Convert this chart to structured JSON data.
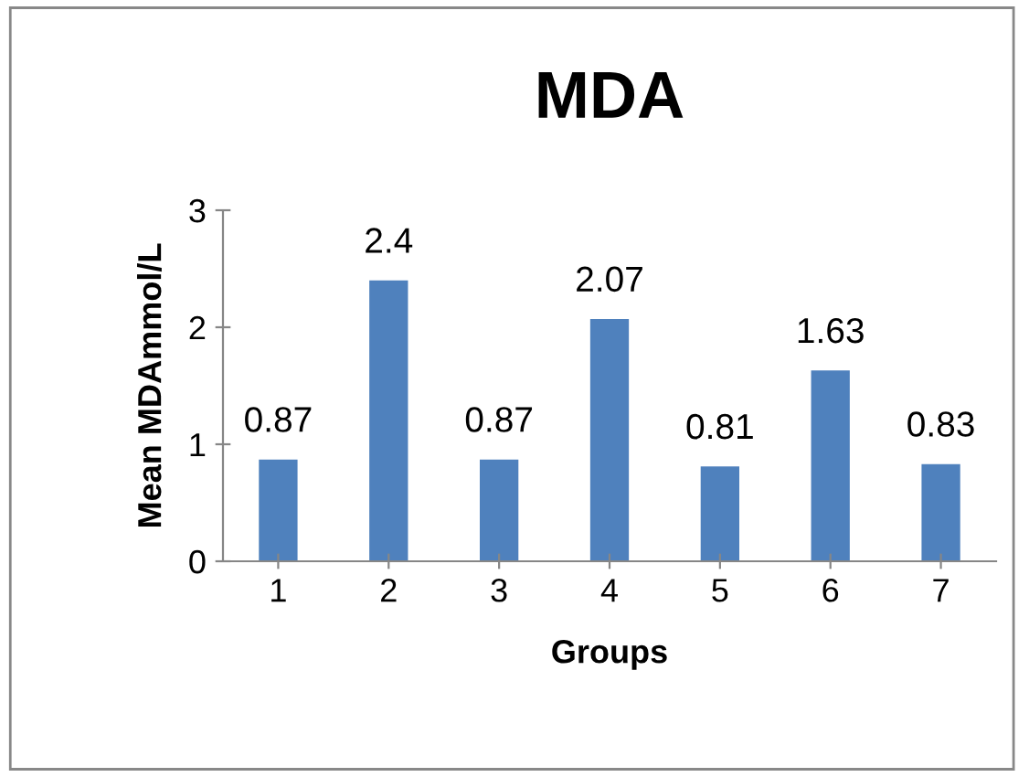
{
  "chart_data": {
    "type": "bar",
    "title": "MDA",
    "xlabel": "Groups",
    "ylabel": "Mean MDAmmol/L",
    "categories": [
      "1",
      "2",
      "3",
      "4",
      "5",
      "6",
      "7"
    ],
    "values": [
      0.87,
      2.4,
      0.87,
      2.07,
      0.81,
      1.63,
      0.83
    ],
    "color": "#4f81bd",
    "ylim": [
      0,
      3
    ],
    "yticks": [
      0,
      1,
      2,
      3
    ],
    "grid": false,
    "data_labels": true
  }
}
